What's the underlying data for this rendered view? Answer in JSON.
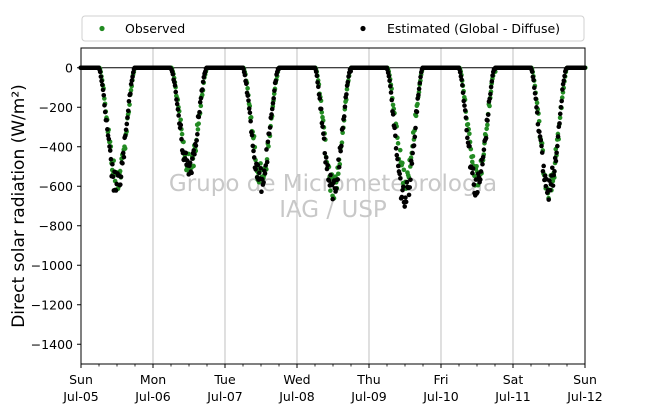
{
  "chart_data": {
    "type": "scatter",
    "ylabel": "Direct solar radiation (W/m²)",
    "ylim": [
      -1500,
      100
    ],
    "y_ticks": [
      0,
      -200,
      -400,
      -600,
      -800,
      -1000,
      -1200,
      -1400
    ],
    "xlim": [
      0,
      7
    ],
    "x_ticks": [
      {
        "day": "Sun",
        "date": "Jul-05"
      },
      {
        "day": "Mon",
        "date": "Jul-06"
      },
      {
        "day": "Tue",
        "date": "Jul-07"
      },
      {
        "day": "Wed",
        "date": "Jul-08"
      },
      {
        "day": "Thu",
        "date": "Jul-09"
      },
      {
        "day": "Fri",
        "date": "Jul-10"
      },
      {
        "day": "Sat",
        "date": "Jul-11"
      },
      {
        "day": "Sun",
        "date": "Jul-12"
      }
    ],
    "grid": "vertical",
    "zero_line": true,
    "legend_position": "above-plot",
    "watermark": [
      "Grupo de Micrometeorologia",
      "IAG / USP"
    ],
    "series": [
      {
        "name": "Observed",
        "color": "#228b22",
        "daily_minima": [
          -560,
          -500,
          -550,
          -600,
          -550,
          -560,
          -600
        ]
      },
      {
        "name": "Estimated (Global - Diffuse)",
        "color": "#000000",
        "daily_minima": [
          -600,
          -500,
          -570,
          -620,
          -660,
          -600,
          -610
        ]
      }
    ]
  }
}
